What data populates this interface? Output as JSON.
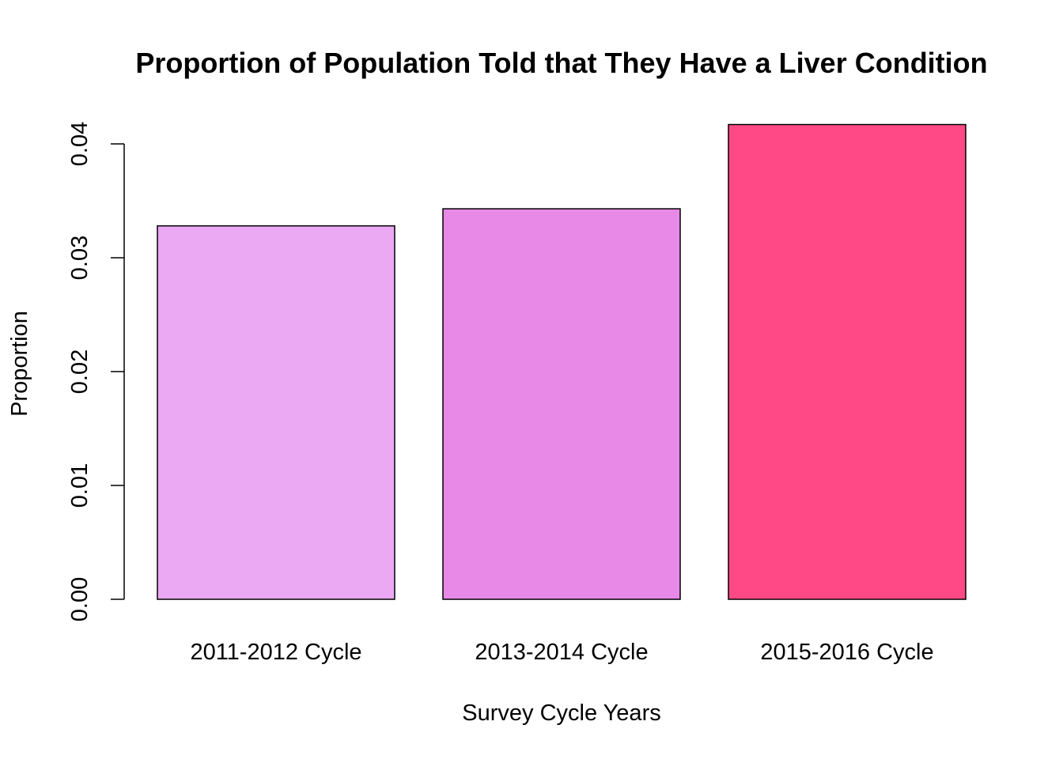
{
  "chart_data": {
    "type": "bar",
    "title": "Proportion of Population Told that They Have a Liver Condition",
    "xlabel": "Survey Cycle Years",
    "ylabel": "Proportion",
    "categories": [
      "2011-2012 Cycle",
      "2013-2014 Cycle",
      "2015-2016 Cycle"
    ],
    "values": [
      0.0328,
      0.0343,
      0.0417
    ],
    "colors": [
      "#EBA9F3",
      "#E889E8",
      "#FF4986"
    ],
    "ylim": [
      0,
      0.04
    ],
    "yticks": [
      0.0,
      0.01,
      0.02,
      0.03,
      0.04
    ],
    "ytick_labels": [
      "0.00",
      "0.01",
      "0.02",
      "0.03",
      "0.04"
    ],
    "grid": false,
    "legend": "none"
  }
}
